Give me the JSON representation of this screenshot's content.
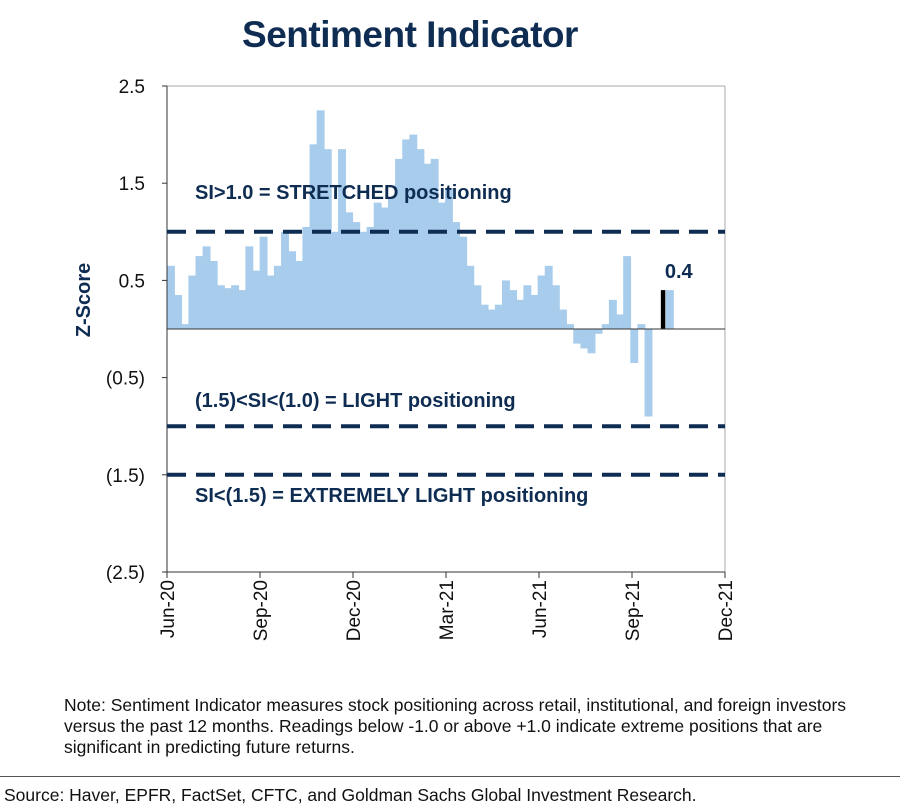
{
  "colors": {
    "bars": "#a7ccec",
    "threshold": "#0f2d52",
    "latest": "#000000",
    "text": "#0f2d52"
  },
  "chart_data": {
    "type": "bar",
    "title": "Sentiment Indicator",
    "ylabel": "Z-Score",
    "xlabel": "",
    "ylim": [
      -2.5,
      2.5
    ],
    "yticks": [
      2.5,
      1.5,
      0.5,
      -0.5,
      -1.5,
      -2.5
    ],
    "ytick_labels": [
      "2.5",
      "1.5",
      "0.5",
      "(0.5)",
      "(1.5)",
      "(2.5)"
    ],
    "xtick_labels": [
      "Jun-20",
      "Sep-20",
      "Dec-20",
      "Mar-21",
      "Jun-21",
      "Sep-21",
      "Dec-21"
    ],
    "x_range": [
      "2020-06-01",
      "2021-12-01"
    ],
    "grid": false,
    "dates": [
      "2020-06-01",
      "2020-06-08",
      "2020-06-15",
      "2020-06-22",
      "2020-06-29",
      "2020-07-06",
      "2020-07-13",
      "2020-07-20",
      "2020-07-27",
      "2020-08-03",
      "2020-08-10",
      "2020-08-17",
      "2020-08-24",
      "2020-08-31",
      "2020-09-07",
      "2020-09-14",
      "2020-09-21",
      "2020-09-28",
      "2020-10-05",
      "2020-10-12",
      "2020-10-19",
      "2020-10-26",
      "2020-11-02",
      "2020-11-09",
      "2020-11-16",
      "2020-11-23",
      "2020-11-30",
      "2020-12-07",
      "2020-12-14",
      "2020-12-21",
      "2020-12-28",
      "2021-01-04",
      "2021-01-11",
      "2021-01-18",
      "2021-01-25",
      "2021-02-01",
      "2021-02-08",
      "2021-02-15",
      "2021-02-22",
      "2021-03-01",
      "2021-03-08",
      "2021-03-15",
      "2021-03-22",
      "2021-03-29",
      "2021-04-05",
      "2021-04-12",
      "2021-04-19",
      "2021-04-26",
      "2021-05-03",
      "2021-05-10",
      "2021-05-17",
      "2021-05-24",
      "2021-05-31",
      "2021-06-07",
      "2021-06-14",
      "2021-06-21",
      "2021-06-28",
      "2021-07-05",
      "2021-07-12",
      "2021-07-19",
      "2021-07-26",
      "2021-08-02",
      "2021-08-09",
      "2021-08-16",
      "2021-08-23",
      "2021-08-30",
      "2021-09-06",
      "2021-09-13",
      "2021-09-20",
      "2021-09-27",
      "2021-10-04"
    ],
    "values": [
      0.65,
      0.35,
      0.05,
      0.55,
      0.75,
      0.85,
      0.7,
      0.45,
      0.42,
      0.45,
      0.4,
      0.85,
      0.6,
      0.95,
      0.55,
      0.65,
      1.0,
      0.8,
      0.7,
      1.05,
      1.9,
      2.25,
      1.85,
      1.0,
      1.85,
      1.2,
      1.1,
      1.0,
      1.05,
      1.3,
      1.25,
      1.35,
      1.75,
      1.95,
      2.0,
      1.85,
      1.7,
      1.75,
      1.3,
      1.45,
      1.1,
      0.95,
      0.65,
      0.45,
      0.25,
      0.2,
      0.25,
      0.5,
      0.4,
      0.3,
      0.45,
      0.35,
      0.55,
      0.65,
      0.45,
      0.2,
      0.05,
      -0.15,
      -0.2,
      -0.25,
      -0.05,
      0.05,
      0.3,
      0.15,
      0.75,
      -0.35,
      0.05,
      -0.9,
      0.0,
      0.0,
      0.4
    ],
    "latest": {
      "date": "2021-09-29",
      "value": 0.4,
      "label": "0.4"
    },
    "thresholds": [
      {
        "value": 1.0,
        "label": "SI>1.0 = STRETCHED positioning"
      },
      {
        "value": -1.0,
        "label": "(1.5)<SI<(1.0) = LIGHT positioning"
      },
      {
        "value": -1.5,
        "label": "SI<(1.5) = EXTREMELY LIGHT positioning"
      }
    ]
  },
  "note": "Note: Sentiment Indicator measures stock positioning across retail, institutional, and foreign investors versus the past 12 months. Readings below -1.0 or above +1.0 indicate extreme positions that are significant in predicting future returns.",
  "source": "Source: Haver, EPFR, FactSet, CFTC, and Goldman Sachs Global Investment Research."
}
